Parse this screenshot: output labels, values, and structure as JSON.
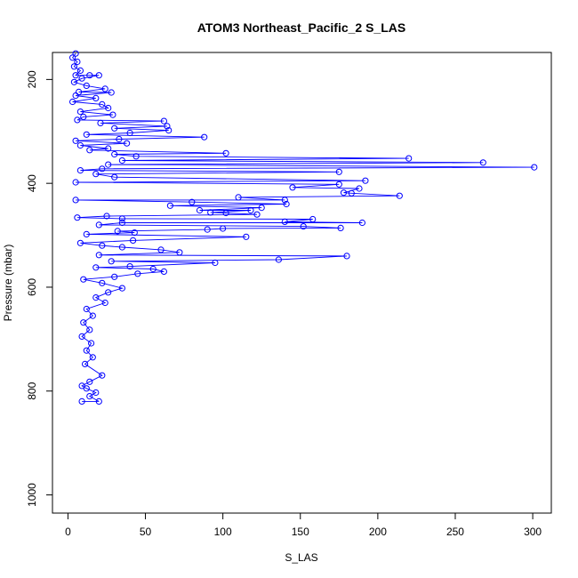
{
  "chart_data": {
    "type": "line",
    "title": "ATOM3 Northeast_Pacific_2 S_LAS",
    "xlabel": "S_LAS",
    "ylabel": "Pressure (mbar)",
    "xlim": [
      -10,
      312
    ],
    "ylim": [
      1035,
      148
    ],
    "y_reversed": true,
    "xticks": [
      0,
      50,
      100,
      150,
      200,
      250,
      300
    ],
    "yticks": [
      200,
      400,
      600,
      800,
      1000
    ],
    "grid": false,
    "series_color": "#0000ff",
    "marker": "open-circle",
    "series": [
      {
        "name": "",
        "points": [
          [
            5,
            150
          ],
          [
            3,
            158
          ],
          [
            6,
            166
          ],
          [
            4,
            175
          ],
          [
            8,
            183
          ],
          [
            5,
            192
          ],
          [
            14,
            192
          ],
          [
            20,
            192
          ],
          [
            9,
            198
          ],
          [
            4,
            205
          ],
          [
            12,
            212
          ],
          [
            24,
            218
          ],
          [
            7,
            224
          ],
          [
            28,
            225
          ],
          [
            5,
            231
          ],
          [
            18,
            236
          ],
          [
            3,
            243
          ],
          [
            22,
            248
          ],
          [
            26,
            255
          ],
          [
            8,
            262
          ],
          [
            29,
            268
          ],
          [
            10,
            272
          ],
          [
            6,
            278
          ],
          [
            62,
            280
          ],
          [
            21,
            284
          ],
          [
            64,
            290
          ],
          [
            30,
            294
          ],
          [
            65,
            298
          ],
          [
            40,
            303
          ],
          [
            12,
            306
          ],
          [
            88,
            311
          ],
          [
            33,
            315
          ],
          [
            5,
            318
          ],
          [
            38,
            323
          ],
          [
            8,
            327
          ],
          [
            26,
            333
          ],
          [
            14,
            336
          ],
          [
            102,
            342
          ],
          [
            30,
            344
          ],
          [
            44,
            348
          ],
          [
            220,
            352
          ],
          [
            35,
            356
          ],
          [
            268,
            360
          ],
          [
            26,
            364
          ],
          [
            301,
            369
          ],
          [
            22,
            372
          ],
          [
            8,
            375
          ],
          [
            175,
            378
          ],
          [
            18,
            382
          ],
          [
            30,
            388
          ],
          [
            192,
            395
          ],
          [
            5,
            398
          ],
          [
            175,
            402
          ],
          [
            145,
            408
          ],
          [
            188,
            410
          ],
          [
            178,
            418
          ],
          [
            183,
            419
          ],
          [
            214,
            424
          ],
          [
            110,
            427
          ],
          [
            140,
            432
          ],
          [
            5,
            432
          ],
          [
            80,
            436
          ],
          [
            141,
            440
          ],
          [
            66,
            443
          ],
          [
            125,
            447
          ],
          [
            85,
            452
          ],
          [
            118,
            452
          ],
          [
            92,
            456
          ],
          [
            102,
            457
          ],
          [
            122,
            460
          ],
          [
            25,
            463
          ],
          [
            6,
            466
          ],
          [
            35,
            468
          ],
          [
            158,
            469
          ],
          [
            140,
            474
          ],
          [
            190,
            476
          ],
          [
            35,
            476
          ],
          [
            20,
            480
          ],
          [
            152,
            483
          ],
          [
            176,
            486
          ],
          [
            100,
            487
          ],
          [
            90,
            489
          ],
          [
            32,
            492
          ],
          [
            43,
            495
          ],
          [
            12,
            498
          ],
          [
            115,
            503
          ],
          [
            42,
            510
          ],
          [
            8,
            515
          ],
          [
            22,
            520
          ],
          [
            35,
            523
          ],
          [
            60,
            528
          ],
          [
            72,
            533
          ],
          [
            20,
            538
          ],
          [
            180,
            540
          ],
          [
            136,
            547
          ],
          [
            28,
            550
          ],
          [
            95,
            553
          ],
          [
            40,
            560
          ],
          [
            18,
            562
          ],
          [
            55,
            565
          ],
          [
            62,
            570
          ],
          [
            45,
            574
          ],
          [
            30,
            580
          ],
          [
            10,
            585
          ],
          [
            22,
            592
          ],
          [
            35,
            602
          ],
          [
            26,
            610
          ],
          [
            18,
            620
          ],
          [
            24,
            630
          ],
          [
            12,
            642
          ],
          [
            16,
            655
          ],
          [
            10,
            668
          ],
          [
            14,
            682
          ],
          [
            9,
            695
          ],
          [
            15,
            708
          ],
          [
            12,
            722
          ],
          [
            16,
            735
          ],
          [
            11,
            748
          ],
          [
            22,
            770
          ],
          [
            14,
            782
          ],
          [
            9,
            790
          ],
          [
            12,
            795
          ],
          [
            18,
            803
          ],
          [
            14,
            810
          ],
          [
            20,
            820
          ],
          [
            9,
            820
          ]
        ]
      }
    ]
  }
}
